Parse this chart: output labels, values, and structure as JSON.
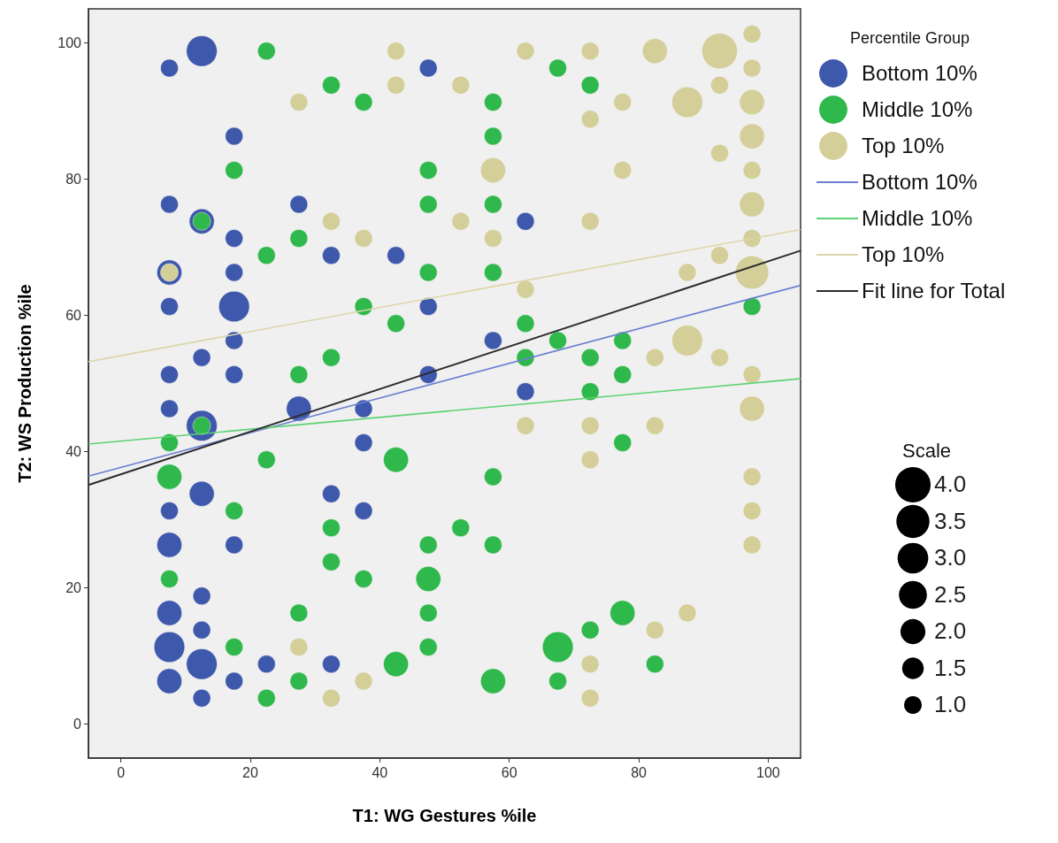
{
  "chart_data": {
    "type": "bubble",
    "xlabel": "T1: WG Gestures %ile",
    "ylabel": "T2: WS Production %ile",
    "legend_title": "Percentile Group",
    "legend": "top right",
    "grid": false,
    "marker": "circle",
    "xlim": [
      -5,
      105
    ],
    "xticks": [
      0,
      20,
      40,
      60,
      80,
      100
    ],
    "ylim": [
      -5,
      105
    ],
    "yticks": [
      0,
      20,
      40,
      60,
      80,
      100
    ],
    "size_legend": [
      {
        "value": 4,
        "label": "4.0"
      },
      {
        "value": 3.5,
        "label": "3.5"
      },
      {
        "value": 3,
        "label": "3.0"
      },
      {
        "value": 2.5,
        "label": "2.5"
      },
      {
        "value": 2,
        "label": "2.0"
      },
      {
        "value": 1.5,
        "label": "1.5"
      },
      {
        "value": 1,
        "label": "1.0"
      }
    ],
    "annotations": [
      "Scale"
    ],
    "series": [
      {
        "name": "Bottom 10%",
        "color": "#3e58ac",
        "x": [
          7.5,
          12.5,
          47.5,
          17.5,
          7.5,
          27.5,
          12.5,
          17.5,
          32.5,
          42.5,
          7.5,
          17.5,
          7.5,
          17.5,
          47.5,
          17.5,
          12.5,
          7.5,
          17.5,
          47.5,
          62.5,
          57.5,
          7.5,
          27.5,
          37.5,
          12.5,
          37.5,
          12.5,
          32.5,
          7.5,
          37.5,
          7.5,
          17.5,
          12.5,
          7.5,
          12.5,
          7.5,
          12.5,
          22.5,
          32.5,
          7.5,
          17.5,
          12.5,
          62.5
        ],
        "values": [
          96.3,
          98.8,
          96.3,
          86.3,
          76.3,
          76.3,
          73.8,
          71.3,
          68.8,
          68.8,
          66.3,
          66.3,
          61.3,
          61.3,
          61.3,
          56.3,
          53.8,
          51.3,
          51.3,
          51.3,
          73.8,
          56.3,
          46.3,
          46.3,
          46.3,
          43.8,
          41.3,
          33.8,
          33.8,
          31.3,
          31.3,
          26.3,
          26.3,
          18.8,
          16.3,
          13.8,
          11.3,
          8.8,
          8.8,
          8.8,
          6.3,
          6.3,
          3.8,
          48.8
        ],
        "sizes": [
          1,
          3,
          1,
          1,
          1,
          1,
          2,
          1,
          1,
          1,
          2,
          1,
          1,
          3,
          1,
          1,
          1,
          1,
          1,
          1,
          1,
          1,
          1,
          2,
          1,
          3,
          1,
          2,
          1,
          1,
          1,
          2,
          1,
          1,
          2,
          1,
          3,
          3,
          1,
          1,
          2,
          1,
          1,
          1
        ]
      },
      {
        "name": "Middle 10%",
        "color": "#2fb84b",
        "x": [
          22.5,
          32.5,
          37.5,
          17.5,
          47.5,
          47.5,
          12.5,
          27.5,
          22.5,
          47.5,
          37.5,
          42.5,
          32.5,
          27.5,
          67.5,
          72.5,
          57.5,
          57.5,
          57.5,
          57.5,
          97.5,
          62.5,
          67.5,
          77.5,
          62.5,
          72.5,
          77.5,
          12.5,
          7.5,
          22.5,
          42.5,
          7.5,
          17.5,
          32.5,
          47.5,
          32.5,
          7.5,
          37.5,
          47.5,
          27.5,
          47.5,
          17.5,
          47.5,
          42.5,
          27.5,
          22.5,
          72.5,
          77.5,
          57.5,
          52.5,
          57.5,
          77.5,
          72.5,
          67.5,
          82.5,
          57.5,
          67.5
        ],
        "values": [
          98.8,
          93.8,
          91.3,
          81.3,
          81.3,
          76.3,
          73.8,
          71.3,
          68.8,
          66.3,
          61.3,
          58.8,
          53.8,
          51.3,
          96.3,
          93.8,
          91.3,
          86.3,
          76.3,
          66.3,
          61.3,
          58.8,
          56.3,
          56.3,
          53.8,
          53.8,
          51.3,
          43.8,
          41.3,
          38.8,
          38.8,
          36.3,
          31.3,
          28.8,
          26.3,
          23.8,
          21.3,
          21.3,
          21.3,
          16.3,
          16.3,
          11.3,
          11.3,
          8.8,
          6.3,
          3.8,
          48.8,
          41.3,
          36.3,
          28.8,
          26.3,
          16.3,
          13.8,
          11.3,
          8.8,
          6.3,
          6.3
        ],
        "sizes": [
          1,
          1,
          1,
          1,
          1,
          1,
          1,
          1,
          1,
          1,
          1,
          1,
          1,
          1,
          1,
          1,
          1,
          1,
          1,
          1,
          1,
          1,
          1,
          1,
          1,
          1,
          1,
          1,
          1,
          1,
          2,
          2,
          1,
          1,
          1,
          1,
          1,
          1,
          2,
          1,
          1,
          1,
          1,
          2,
          1,
          1,
          1,
          1,
          1,
          1,
          1,
          2,
          1,
          3,
          1,
          2,
          1
        ]
      },
      {
        "name": "Top 10%",
        "color": "#d4ce99",
        "x": [
          42.5,
          42.5,
          27.5,
          32.5,
          37.5,
          7.5,
          97.5,
          62.5,
          72.5,
          82.5,
          92.5,
          97.5,
          52.5,
          92.5,
          77.5,
          87.5,
          97.5,
          72.5,
          97.5,
          92.5,
          57.5,
          77.5,
          97.5,
          97.5,
          52.5,
          72.5,
          57.5,
          97.5,
          92.5,
          87.5,
          97.5,
          62.5,
          87.5,
          82.5,
          92.5,
          97.5,
          97.5,
          62.5,
          72.5,
          82.5,
          72.5,
          97.5,
          97.5,
          97.5,
          87.5,
          82.5,
          72.5,
          72.5,
          27.5,
          37.5,
          32.5
        ],
        "values": [
          98.8,
          93.8,
          91.3,
          73.8,
          71.3,
          66.3,
          101.3,
          98.8,
          98.8,
          98.8,
          98.8,
          96.3,
          93.8,
          93.8,
          91.3,
          91.3,
          91.3,
          88.8,
          86.3,
          83.8,
          81.3,
          81.3,
          81.3,
          76.3,
          73.8,
          73.8,
          71.3,
          71.3,
          68.8,
          66.3,
          66.3,
          63.8,
          56.3,
          53.8,
          53.8,
          51.3,
          46.3,
          43.8,
          43.8,
          43.8,
          38.8,
          36.3,
          31.3,
          26.3,
          16.3,
          13.8,
          8.8,
          3.8,
          11.3,
          6.3,
          3.8
        ],
        "sizes": [
          1,
          1,
          1,
          1,
          1,
          1,
          1,
          1,
          1,
          2,
          4,
          1,
          1,
          1,
          1,
          3,
          2,
          1,
          2,
          1,
          2,
          1,
          1,
          2,
          1,
          1,
          1,
          1,
          1,
          1,
          3.5,
          1,
          3,
          1,
          1,
          1,
          2,
          1,
          1,
          1,
          1,
          1,
          1,
          1,
          1,
          1,
          1,
          1,
          1,
          1,
          1
        ]
      },
      {
        "name": "Bottom 10%",
        "type": "line",
        "marker": "none",
        "color": "#6a7fd0",
        "x": [
          -5,
          105
        ],
        "values": [
          36.4,
          64.4
        ]
      },
      {
        "name": "Middle 10%",
        "type": "line",
        "marker": "none",
        "color": "#5dd272",
        "x": [
          -5,
          105
        ],
        "values": [
          41.1,
          50.7
        ]
      },
      {
        "name": "Top 10%",
        "type": "line",
        "marker": "none",
        "color": "#dcd6aa",
        "x": [
          -5,
          105
        ],
        "values": [
          53.2,
          72.6
        ]
      },
      {
        "name": "Fit line for Total",
        "type": "line",
        "marker": "none",
        "color": "#2b2b2b",
        "x": [
          -5,
          105
        ],
        "values": [
          35.1,
          69.5
        ]
      }
    ]
  }
}
